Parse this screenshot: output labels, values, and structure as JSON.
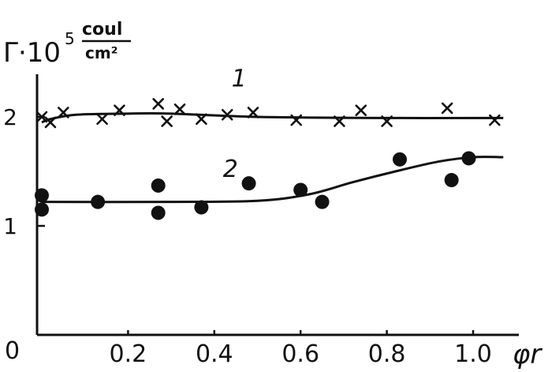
{
  "chart_data": {
    "type": "scatter",
    "ylabel": {
      "prefix": "Γ·10",
      "exponent": "5",
      "unit_numerator": "coul",
      "unit_denominator": "cm²"
    },
    "xlabel": "φr",
    "origin_label": "0",
    "xlim": [
      0,
      1.1
    ],
    "ylim": [
      0,
      2.5
    ],
    "x_ticks": [
      {
        "value": 0.2,
        "label": "0.2"
      },
      {
        "value": 0.4,
        "label": "0.4"
      },
      {
        "value": 0.6,
        "label": "0.6"
      },
      {
        "value": 0.8,
        "label": "0.8"
      },
      {
        "value": 1.0,
        "label": "1.0"
      }
    ],
    "y_ticks": [
      {
        "value": 1,
        "label": "1"
      },
      {
        "value": 2,
        "label": "2"
      }
    ],
    "grid": false,
    "legend": "none",
    "series": [
      {
        "name": "1",
        "marker": "x",
        "points": [
          {
            "x": 0.0,
            "y": 2.0
          },
          {
            "x": 0.02,
            "y": 1.95
          },
          {
            "x": 0.05,
            "y": 2.04
          },
          {
            "x": 0.14,
            "y": 1.98
          },
          {
            "x": 0.18,
            "y": 2.06
          },
          {
            "x": 0.27,
            "y": 2.12
          },
          {
            "x": 0.29,
            "y": 1.96
          },
          {
            "x": 0.32,
            "y": 2.07
          },
          {
            "x": 0.37,
            "y": 1.98
          },
          {
            "x": 0.43,
            "y": 2.02
          },
          {
            "x": 0.49,
            "y": 2.04
          },
          {
            "x": 0.59,
            "y": 1.97
          },
          {
            "x": 0.69,
            "y": 1.96
          },
          {
            "x": 0.74,
            "y": 2.06
          },
          {
            "x": 0.8,
            "y": 1.96
          },
          {
            "x": 0.94,
            "y": 2.08
          },
          {
            "x": 1.05,
            "y": 1.97
          }
        ],
        "curve": [
          {
            "x": 0.0,
            "y": 1.95
          },
          {
            "x": 0.02,
            "y": 1.98
          },
          {
            "x": 0.08,
            "y": 2.02
          },
          {
            "x": 0.2,
            "y": 2.03
          },
          {
            "x": 0.3,
            "y": 2.03
          },
          {
            "x": 0.5,
            "y": 2.0
          },
          {
            "x": 0.8,
            "y": 1.99
          },
          {
            "x": 1.07,
            "y": 1.99
          }
        ]
      },
      {
        "name": "2",
        "marker": "circle",
        "points": [
          {
            "x": 0.0,
            "y": 1.28
          },
          {
            "x": 0.0,
            "y": 1.15
          },
          {
            "x": 0.13,
            "y": 1.22
          },
          {
            "x": 0.27,
            "y": 1.37
          },
          {
            "x": 0.27,
            "y": 1.12
          },
          {
            "x": 0.37,
            "y": 1.17
          },
          {
            "x": 0.48,
            "y": 1.39
          },
          {
            "x": 0.6,
            "y": 1.33
          },
          {
            "x": 0.65,
            "y": 1.22
          },
          {
            "x": 0.83,
            "y": 1.61
          },
          {
            "x": 0.95,
            "y": 1.42
          },
          {
            "x": 0.99,
            "y": 1.62
          }
        ],
        "curve": [
          {
            "x": 0.0,
            "y": 1.22
          },
          {
            "x": 0.3,
            "y": 1.22
          },
          {
            "x": 0.5,
            "y": 1.23
          },
          {
            "x": 0.62,
            "y": 1.29
          },
          {
            "x": 0.72,
            "y": 1.4
          },
          {
            "x": 0.82,
            "y": 1.5
          },
          {
            "x": 0.92,
            "y": 1.59
          },
          {
            "x": 1.0,
            "y": 1.63
          },
          {
            "x": 1.07,
            "y": 1.63
          }
        ]
      }
    ]
  }
}
